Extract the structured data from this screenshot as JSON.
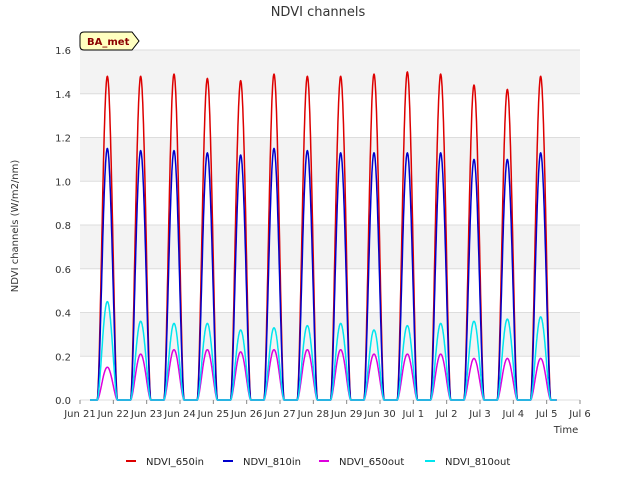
{
  "chart_data": {
    "type": "line",
    "title": "NDVI channels",
    "xlabel": "Time",
    "ylabel": "NDVI channels (W/m2/nm)",
    "badge": "BA_met",
    "ylim": [
      0,
      1.6
    ],
    "yticks": [
      "0.0",
      "0.2",
      "0.4",
      "0.6",
      "0.8",
      "1.0",
      "1.2",
      "1.4",
      "1.6"
    ],
    "xlim": [
      0,
      15
    ],
    "xtick_labels": [
      "Jun 21",
      "Jun 22",
      "Jun 23",
      "Jun 24",
      "Jun 25",
      "Jun 26",
      "Jun 27",
      "Jun 28",
      "Jun 29",
      "Jun 30",
      "Jul 1",
      "Jul 2",
      "Jul 3",
      "Jul 4",
      "Jul 5",
      "Jul 6"
    ],
    "days": [
      "Jun 21",
      "Jun 22",
      "Jun 23",
      "Jun 24",
      "Jun 25",
      "Jun 26",
      "Jun 27",
      "Jun 28",
      "Jun 29",
      "Jun 30",
      "Jul 1",
      "Jul 2",
      "Jul 3",
      "Jul 4"
    ],
    "grid": true,
    "background_bands": "alternating light gray",
    "legend_position": "bottom",
    "series": [
      {
        "name": "NDVI_650in",
        "color": "#dd0000",
        "daily_peak": [
          1.48,
          1.48,
          1.49,
          1.47,
          1.46,
          1.49,
          1.48,
          1.48,
          1.49,
          1.5,
          1.49,
          1.44,
          1.42,
          1.48
        ]
      },
      {
        "name": "NDVI_810in",
        "color": "#0000cc",
        "daily_peak": [
          1.15,
          1.14,
          1.14,
          1.13,
          1.12,
          1.15,
          1.14,
          1.13,
          1.13,
          1.13,
          1.13,
          1.1,
          1.1,
          1.13
        ]
      },
      {
        "name": "NDVI_650out",
        "color": "#dd00dd",
        "daily_peak": [
          0.15,
          0.21,
          0.23,
          0.23,
          0.22,
          0.23,
          0.23,
          0.23,
          0.21,
          0.21,
          0.21,
          0.19,
          0.19,
          0.19
        ]
      },
      {
        "name": "NDVI_810out",
        "color": "#00e5ee",
        "daily_peak": [
          0.45,
          0.36,
          0.35,
          0.35,
          0.32,
          0.33,
          0.34,
          0.35,
          0.32,
          0.34,
          0.35,
          0.36,
          0.37,
          0.38
        ]
      }
    ]
  }
}
